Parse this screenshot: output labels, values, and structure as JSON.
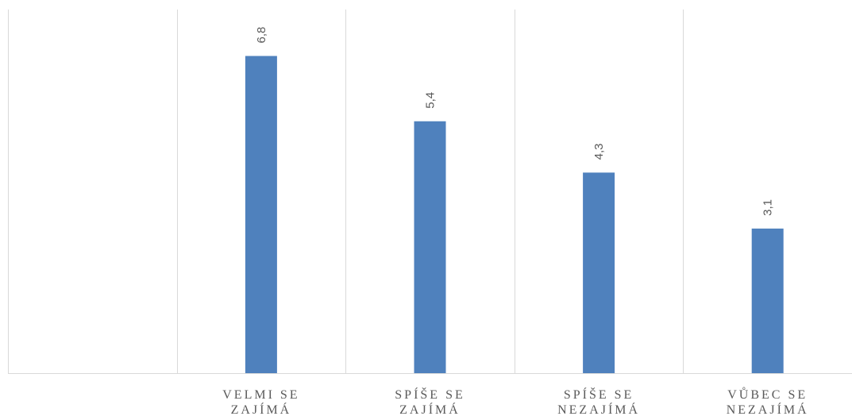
{
  "chart_data": {
    "type": "bar",
    "categories": [
      "",
      [
        "VELMI SE",
        "ZAJÍMÁ"
      ],
      [
        "SPÍŠE SE",
        "ZAJÍMÁ"
      ],
      [
        "SPÍŠE SE",
        "NEZAJÍMÁ"
      ],
      [
        "VŮBEC SE",
        "NEZAJÍMÁ"
      ]
    ],
    "values": [
      null,
      6.8,
      5.4,
      4.3,
      3.1
    ],
    "data_labels": [
      "",
      "6,8",
      "5,4",
      "4,3",
      "3,1"
    ],
    "ylim": [
      0,
      8
    ],
    "grid": true,
    "legend": false,
    "colors": {
      "bar": "#4f81bd",
      "grid": "#d9d9d9",
      "text": "#595959"
    }
  }
}
